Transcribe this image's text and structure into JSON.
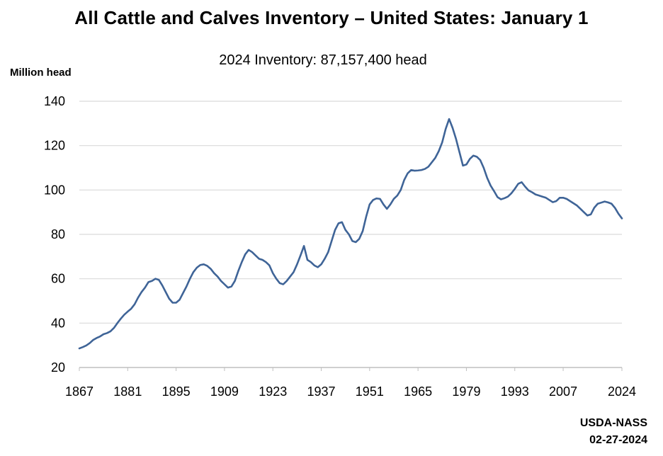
{
  "title": "All Cattle and Calves Inventory – United States: January 1",
  "subtitle": "2024 Inventory: 87,157,400 head",
  "source_line1": "USDA-NASS",
  "source_line2": "02-27-2024",
  "colors": {
    "line": "#3f6497",
    "grid": "#d9d9d9",
    "axis": "#bfbfbf"
  },
  "chart_data": {
    "type": "line",
    "title": "All Cattle and Calves Inventory – United States: January 1",
    "subtitle": "2024 Inventory: 87,157,400 head",
    "ylabel": "Million head",
    "xlabel": "",
    "xlim": [
      1867,
      2024
    ],
    "ylim": [
      20,
      140
    ],
    "x_ticks": [
      1867,
      1881,
      1895,
      1909,
      1923,
      1937,
      1951,
      1965,
      1979,
      1993,
      2007,
      2024
    ],
    "y_ticks": [
      20,
      40,
      60,
      80,
      100,
      120,
      140
    ],
    "grid": true,
    "legend": "none",
    "series": [
      {
        "points": [
          [
            1867,
            28.6
          ],
          [
            1868,
            29.2
          ],
          [
            1869,
            29.9
          ],
          [
            1870,
            31.0
          ],
          [
            1871,
            32.4
          ],
          [
            1872,
            33.3
          ],
          [
            1873,
            34.0
          ],
          [
            1874,
            35.0
          ],
          [
            1875,
            35.5
          ],
          [
            1876,
            36.3
          ],
          [
            1877,
            37.8
          ],
          [
            1878,
            40.0
          ],
          [
            1879,
            42.0
          ],
          [
            1880,
            43.8
          ],
          [
            1881,
            45.2
          ],
          [
            1882,
            46.5
          ],
          [
            1883,
            48.5
          ],
          [
            1884,
            51.5
          ],
          [
            1885,
            54.0
          ],
          [
            1886,
            56.0
          ],
          [
            1887,
            58.5
          ],
          [
            1888,
            59.0
          ],
          [
            1889,
            60.0
          ],
          [
            1890,
            59.5
          ],
          [
            1891,
            57.0
          ],
          [
            1892,
            54.0
          ],
          [
            1893,
            51.0
          ],
          [
            1894,
            49.2
          ],
          [
            1895,
            49.2
          ],
          [
            1896,
            50.5
          ],
          [
            1897,
            53.5
          ],
          [
            1898,
            56.5
          ],
          [
            1899,
            60.0
          ],
          [
            1900,
            63.0
          ],
          [
            1901,
            65.0
          ],
          [
            1902,
            66.2
          ],
          [
            1903,
            66.5
          ],
          [
            1904,
            65.8
          ],
          [
            1905,
            64.5
          ],
          [
            1906,
            62.5
          ],
          [
            1907,
            61.0
          ],
          [
            1908,
            59.0
          ],
          [
            1909,
            57.5
          ],
          [
            1910,
            56.0
          ],
          [
            1911,
            56.5
          ],
          [
            1912,
            59.0
          ],
          [
            1913,
            63.5
          ],
          [
            1914,
            67.5
          ],
          [
            1915,
            71.0
          ],
          [
            1916,
            73.0
          ],
          [
            1917,
            72.0
          ],
          [
            1918,
            70.5
          ],
          [
            1919,
            69.0
          ],
          [
            1920,
            68.5
          ],
          [
            1921,
            67.5
          ],
          [
            1922,
            66.0
          ],
          [
            1923,
            62.5
          ],
          [
            1924,
            60.0
          ],
          [
            1925,
            58.0
          ],
          [
            1926,
            57.5
          ],
          [
            1927,
            59.0
          ],
          [
            1928,
            61.0
          ],
          [
            1929,
            63.0
          ],
          [
            1930,
            66.5
          ],
          [
            1931,
            70.5
          ],
          [
            1932,
            74.8
          ],
          [
            1933,
            68.5
          ],
          [
            1934,
            67.5
          ],
          [
            1935,
            66.0
          ],
          [
            1936,
            65.2
          ],
          [
            1937,
            66.5
          ],
          [
            1938,
            69.0
          ],
          [
            1939,
            72.0
          ],
          [
            1940,
            77.0
          ],
          [
            1941,
            82.0
          ],
          [
            1942,
            85.0
          ],
          [
            1943,
            85.5
          ],
          [
            1944,
            82.0
          ],
          [
            1945,
            80.0
          ],
          [
            1946,
            77.0
          ],
          [
            1947,
            76.5
          ],
          [
            1948,
            78.0
          ],
          [
            1949,
            81.5
          ],
          [
            1950,
            88.0
          ],
          [
            1951,
            93.5
          ],
          [
            1952,
            95.5
          ],
          [
            1953,
            96.2
          ],
          [
            1954,
            96.0
          ],
          [
            1955,
            93.5
          ],
          [
            1956,
            91.5
          ],
          [
            1957,
            93.5
          ],
          [
            1958,
            96.0
          ],
          [
            1959,
            97.5
          ],
          [
            1960,
            100.0
          ],
          [
            1961,
            104.5
          ],
          [
            1962,
            107.5
          ],
          [
            1963,
            109.0
          ],
          [
            1964,
            108.7
          ],
          [
            1965,
            108.8
          ],
          [
            1966,
            109.0
          ],
          [
            1967,
            109.5
          ],
          [
            1968,
            110.5
          ],
          [
            1969,
            112.5
          ],
          [
            1970,
            114.5
          ],
          [
            1971,
            117.5
          ],
          [
            1972,
            121.5
          ],
          [
            1973,
            127.5
          ],
          [
            1974,
            132.0
          ],
          [
            1975,
            128.0
          ],
          [
            1976,
            123.0
          ],
          [
            1977,
            117.0
          ],
          [
            1978,
            111.0
          ],
          [
            1979,
            111.5
          ],
          [
            1980,
            114.0
          ],
          [
            1981,
            115.5
          ],
          [
            1982,
            115.0
          ],
          [
            1983,
            113.5
          ],
          [
            1984,
            110.0
          ],
          [
            1985,
            105.5
          ],
          [
            1986,
            102.0
          ],
          [
            1987,
            99.5
          ],
          [
            1988,
            96.8
          ],
          [
            1989,
            95.8
          ],
          [
            1990,
            96.3
          ],
          [
            1991,
            97.0
          ],
          [
            1992,
            98.5
          ],
          [
            1993,
            100.5
          ],
          [
            1994,
            102.8
          ],
          [
            1995,
            103.5
          ],
          [
            1996,
            101.5
          ],
          [
            1997,
            99.8
          ],
          [
            1998,
            99.0
          ],
          [
            1999,
            98.0
          ],
          [
            2000,
            97.5
          ],
          [
            2001,
            97.0
          ],
          [
            2002,
            96.5
          ],
          [
            2003,
            95.5
          ],
          [
            2004,
            94.5
          ],
          [
            2005,
            95.0
          ],
          [
            2006,
            96.5
          ],
          [
            2007,
            96.5
          ],
          [
            2008,
            96.0
          ],
          [
            2009,
            95.0
          ],
          [
            2010,
            94.0
          ],
          [
            2011,
            93.0
          ],
          [
            2012,
            91.5
          ],
          [
            2013,
            90.0
          ],
          [
            2014,
            88.5
          ],
          [
            2015,
            89.0
          ],
          [
            2016,
            92.0
          ],
          [
            2017,
            93.8
          ],
          [
            2018,
            94.3
          ],
          [
            2019,
            94.8
          ],
          [
            2020,
            94.4
          ],
          [
            2021,
            93.8
          ],
          [
            2022,
            91.9
          ],
          [
            2023,
            89.3
          ],
          [
            2024,
            87.2
          ]
        ]
      }
    ]
  }
}
